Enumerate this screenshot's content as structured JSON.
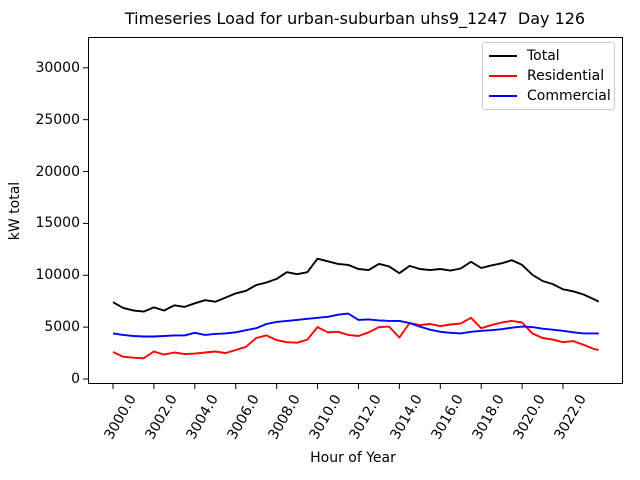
{
  "title": "Timeseries Load for urban-suburban uhs9_1247  Day 126",
  "chart_data": {
    "type": "line",
    "title": "Timeseries Load for urban-suburban uhs9_1247  Day 126",
    "xlabel": "Hour of Year",
    "ylabel": "kW total",
    "xlim": [
      2998.8,
      3024.9
    ],
    "ylim": [
      -480,
      32970
    ],
    "grid": false,
    "legend_position": "upper right",
    "yticks": [
      0,
      5000,
      10000,
      15000,
      20000,
      25000,
      30000
    ],
    "ytick_labels": [
      "0",
      "5000",
      "10000",
      "15000",
      "20000",
      "25000",
      "30000"
    ],
    "xticks": [
      3000,
      3002,
      3004,
      3006,
      3008,
      3010,
      3012,
      3014,
      3016,
      3018,
      3020,
      3022
    ],
    "xtick_labels": [
      "3000.0",
      "3002.0",
      "3004.0",
      "3006.0",
      "3008.0",
      "3010.0",
      "3012.0",
      "3014.0",
      "3016.0",
      "3018.0",
      "3020.0",
      "3022.0"
    ],
    "x": [
      3000,
      3000.5,
      3001,
      3001.5,
      3002,
      3002.5,
      3003,
      3003.5,
      3004,
      3004.5,
      3005,
      3005.5,
      3006,
      3006.5,
      3007,
      3007.5,
      3008,
      3008.5,
      3009,
      3009.5,
      3010,
      3010.5,
      3011,
      3011.5,
      3012,
      3012.5,
      3013,
      3013.5,
      3014,
      3014.5,
      3015,
      3015.5,
      3016,
      3016.5,
      3017,
      3017.5,
      3018,
      3018.5,
      3019,
      3019.5,
      3020,
      3020.5,
      3021,
      3021.5,
      3022,
      3022.5,
      3023,
      3023.5,
      3023.75
    ],
    "series": [
      {
        "name": "Total",
        "color": "#000000",
        "values": [
          7400,
          6850,
          6600,
          6500,
          6900,
          6600,
          7100,
          6950,
          7300,
          7600,
          7450,
          7850,
          8250,
          8500,
          9050,
          9300,
          9650,
          10300,
          10100,
          10300,
          11600,
          11350,
          11100,
          11000,
          10600,
          10500,
          11100,
          10850,
          10200,
          10900,
          10600,
          10500,
          10600,
          10450,
          10650,
          11300,
          10700,
          10950,
          11150,
          11450,
          11000,
          10050,
          9450,
          9150,
          8650,
          8450,
          8150,
          7700,
          7450
        ]
      },
      {
        "name": "Residential",
        "color": "#ff0000",
        "values": [
          2600,
          2150,
          2050,
          2000,
          2650,
          2350,
          2550,
          2400,
          2450,
          2550,
          2650,
          2500,
          2800,
          3100,
          3950,
          4200,
          3750,
          3550,
          3500,
          3800,
          5000,
          4500,
          4550,
          4250,
          4150,
          4500,
          5000,
          5050,
          4000,
          5400,
          5200,
          5300,
          5100,
          5250,
          5350,
          5900,
          4900,
          5200,
          5450,
          5600,
          5450,
          4400,
          3950,
          3800,
          3550,
          3650,
          3300,
          2900,
          2800
        ]
      },
      {
        "name": "Commercial",
        "color": "#0000ff",
        "values": [
          4400,
          4250,
          4150,
          4100,
          4100,
          4150,
          4200,
          4200,
          4450,
          4250,
          4350,
          4400,
          4500,
          4700,
          4900,
          5300,
          5500,
          5600,
          5700,
          5800,
          5900,
          6000,
          6200,
          6300,
          5700,
          5750,
          5650,
          5600,
          5600,
          5400,
          5050,
          4750,
          4550,
          4450,
          4400,
          4550,
          4650,
          4700,
          4800,
          4950,
          5050,
          5000,
          4850,
          4750,
          4650,
          4500,
          4400,
          4400,
          4400
        ]
      }
    ]
  }
}
